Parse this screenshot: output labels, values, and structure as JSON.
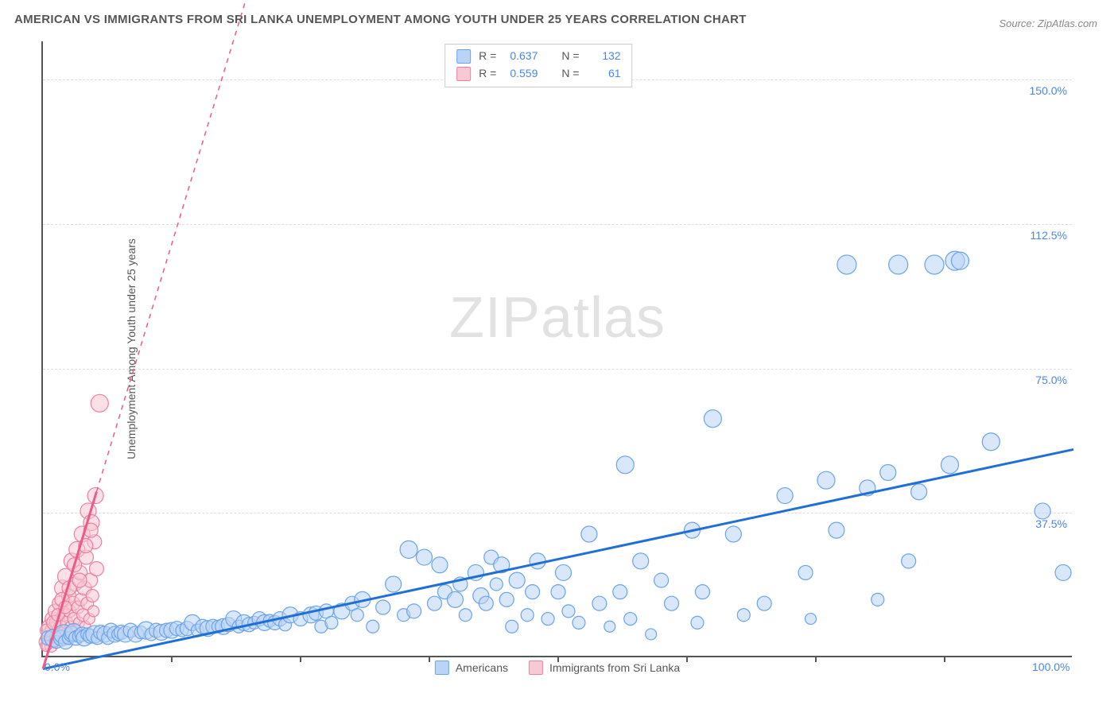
{
  "title": "AMERICAN VS IMMIGRANTS FROM SRI LANKA UNEMPLOYMENT AMONG YOUTH UNDER 25 YEARS CORRELATION CHART",
  "source_label": "Source: ZipAtlas.com",
  "ylabel": "Unemployment Among Youth under 25 years",
  "watermark_a": "ZIP",
  "watermark_b": "atlas",
  "colors": {
    "series1_fill": "#b9d4f5",
    "series1_stroke": "#6aa3e8",
    "series1_line": "#1f6fd6",
    "series2_fill": "#f8c9d4",
    "series2_stroke": "#ec7fa0",
    "series2_line": "#ea5b87",
    "grid": "#dddddd",
    "axis": "#555555",
    "tick_text": "#4a86e8",
    "title_text": "#555555",
    "source_text": "#888888",
    "watermark": "#cccccc"
  },
  "legend_top": {
    "rows": [
      {
        "swatch": "series1",
        "r": "0.637",
        "n": "132"
      },
      {
        "swatch": "series2",
        "r": "0.559",
        "n": "61"
      }
    ],
    "r_label": "R =",
    "n_label": "N ="
  },
  "legend_bottom": {
    "series1_label": "Americans",
    "series2_label": "Immigrants from Sri Lanka"
  },
  "axes": {
    "xlim": [
      0,
      100
    ],
    "ylim": [
      0,
      160
    ],
    "x_ticks_minor": [
      12.5,
      25,
      37.5,
      50,
      62.5,
      75,
      87.5
    ],
    "x_tick_labels": [
      {
        "v": 0,
        "label": "0.0%"
      },
      {
        "v": 100,
        "label": "100.0%"
      }
    ],
    "y_tick_labels": [
      {
        "v": 37.5,
        "label": "37.5%"
      },
      {
        "v": 75.0,
        "label": "75.0%"
      },
      {
        "v": 112.5,
        "label": "112.5%"
      },
      {
        "v": 150.0,
        "label": "150.0%"
      }
    ]
  },
  "trend_lines": {
    "series1": {
      "x1": 0,
      "y1": -3,
      "x2": 100,
      "y2": 54,
      "dashed_extend": false
    },
    "series2": {
      "x1": 0,
      "y1": -3,
      "x2": 5.2,
      "y2": 43,
      "dashed_extend": true,
      "dash_x2": 23,
      "dash_y2": 200
    }
  },
  "series1_points": [
    [
      0.5,
      5,
      9
    ],
    [
      1,
      5,
      11
    ],
    [
      1.3,
      4,
      8
    ],
    [
      1.8,
      5,
      10
    ],
    [
      2,
      6,
      12
    ],
    [
      2.2,
      4,
      9
    ],
    [
      2.5,
      5,
      8
    ],
    [
      2.8,
      6,
      10
    ],
    [
      3,
      6.5,
      11
    ],
    [
      3.2,
      5,
      9
    ],
    [
      3.5,
      5.5,
      8
    ],
    [
      3.8,
      6,
      9
    ],
    [
      4,
      5,
      10
    ],
    [
      4.3,
      6,
      8
    ],
    [
      4.6,
      5.5,
      9
    ],
    [
      5,
      6,
      11
    ],
    [
      5.3,
      5,
      8
    ],
    [
      5.6,
      6.5,
      9
    ],
    [
      6,
      6,
      10
    ],
    [
      6.3,
      5,
      8
    ],
    [
      6.6,
      7,
      9
    ],
    [
      7,
      6,
      10
    ],
    [
      7.3,
      6,
      8
    ],
    [
      7.6,
      6.5,
      9
    ],
    [
      8,
      6,
      10
    ],
    [
      8.5,
      7,
      9
    ],
    [
      9,
      6,
      10
    ],
    [
      9.5,
      6.5,
      8
    ],
    [
      10,
      7,
      11
    ],
    [
      10.5,
      6,
      8
    ],
    [
      11,
      7,
      9
    ],
    [
      11.5,
      6.5,
      10
    ],
    [
      12,
      7,
      9
    ],
    [
      12.5,
      7,
      10
    ],
    [
      13,
      7.5,
      9
    ],
    [
      13.5,
      7,
      8
    ],
    [
      14,
      7.5,
      9
    ],
    [
      14.5,
      9,
      10
    ],
    [
      15,
      7,
      8
    ],
    [
      15.5,
      8,
      9
    ],
    [
      16,
      7.5,
      10
    ],
    [
      16.5,
      8,
      9
    ],
    [
      17,
      8,
      8
    ],
    [
      17.5,
      8,
      10
    ],
    [
      18,
      8.5,
      9
    ],
    [
      18.5,
      10,
      10
    ],
    [
      19,
      8,
      8
    ],
    [
      19.5,
      9,
      10
    ],
    [
      20,
      8.5,
      9
    ],
    [
      20.5,
      9,
      8
    ],
    [
      21,
      10,
      9
    ],
    [
      21.5,
      9,
      10
    ],
    [
      22,
      9.5,
      8
    ],
    [
      22.5,
      9,
      9
    ],
    [
      23,
      10,
      9
    ],
    [
      23.5,
      8.5,
      8
    ],
    [
      24,
      11,
      10
    ],
    [
      25,
      10,
      9
    ],
    [
      26,
      11,
      10
    ],
    [
      26.5,
      11.5,
      9
    ],
    [
      27,
      8,
      8
    ],
    [
      27.5,
      12,
      9
    ],
    [
      28,
      9,
      8
    ],
    [
      29,
      12,
      10
    ],
    [
      30,
      14,
      9
    ],
    [
      30.5,
      11,
      8
    ],
    [
      31,
      15,
      10
    ],
    [
      32,
      8,
      8
    ],
    [
      33,
      13,
      9
    ],
    [
      34,
      19,
      10
    ],
    [
      35,
      11,
      8
    ],
    [
      35.5,
      28,
      11
    ],
    [
      36,
      12,
      9
    ],
    [
      37,
      26,
      10
    ],
    [
      38,
      14,
      9
    ],
    [
      38.5,
      24,
      10
    ],
    [
      39,
      17,
      9
    ],
    [
      40,
      15,
      10
    ],
    [
      40.5,
      19,
      9
    ],
    [
      41,
      11,
      8
    ],
    [
      42,
      22,
      10
    ],
    [
      42.5,
      16,
      10
    ],
    [
      43,
      14,
      9
    ],
    [
      43.5,
      26,
      9
    ],
    [
      44,
      19,
      8
    ],
    [
      44.5,
      24,
      10
    ],
    [
      45,
      15,
      9
    ],
    [
      45.5,
      8,
      8
    ],
    [
      46,
      20,
      10
    ],
    [
      47,
      11,
      8
    ],
    [
      47.5,
      17,
      9
    ],
    [
      48,
      25,
      10
    ],
    [
      49,
      10,
      8
    ],
    [
      50,
      17,
      9
    ],
    [
      50.5,
      22,
      10
    ],
    [
      51,
      12,
      8
    ],
    [
      52,
      9,
      8
    ],
    [
      53,
      32,
      10
    ],
    [
      54,
      14,
      9
    ],
    [
      55,
      8,
      7
    ],
    [
      56,
      17,
      9
    ],
    [
      56.5,
      50,
      11
    ],
    [
      57,
      10,
      8
    ],
    [
      58,
      25,
      10
    ],
    [
      59,
      6,
      7
    ],
    [
      60,
      20,
      9
    ],
    [
      61,
      14,
      9
    ],
    [
      63,
      33,
      10
    ],
    [
      63.5,
      9,
      8
    ],
    [
      64,
      17,
      9
    ],
    [
      65,
      62,
      11
    ],
    [
      67,
      32,
      10
    ],
    [
      68,
      11,
      8
    ],
    [
      70,
      14,
      9
    ],
    [
      72,
      42,
      10
    ],
    [
      74,
      22,
      9
    ],
    [
      74.5,
      10,
      7
    ],
    [
      76,
      46,
      11
    ],
    [
      77,
      33,
      10
    ],
    [
      78,
      102,
      12
    ],
    [
      80,
      44,
      10
    ],
    [
      81,
      15,
      8
    ],
    [
      82,
      48,
      10
    ],
    [
      83,
      102,
      12
    ],
    [
      84,
      25,
      9
    ],
    [
      85,
      43,
      10
    ],
    [
      86.5,
      102,
      12
    ],
    [
      88,
      50,
      11
    ],
    [
      88.5,
      103,
      12
    ],
    [
      89,
      103,
      11
    ],
    [
      92,
      56,
      11
    ],
    [
      97,
      38,
      10
    ],
    [
      99,
      22,
      10
    ]
  ],
  "series2_points": [
    [
      0.4,
      4,
      10
    ],
    [
      0.5,
      6,
      8
    ],
    [
      0.6,
      8,
      9
    ],
    [
      0.7,
      5,
      7
    ],
    [
      0.8,
      3,
      8
    ],
    [
      0.9,
      10,
      9
    ],
    [
      1.0,
      7,
      10
    ],
    [
      1.1,
      4,
      7
    ],
    [
      1.2,
      12,
      9
    ],
    [
      1.3,
      6,
      8
    ],
    [
      1.4,
      9,
      10
    ],
    [
      1.5,
      5,
      7
    ],
    [
      1.6,
      14,
      9
    ],
    [
      1.7,
      8,
      8
    ],
    [
      1.8,
      6,
      9
    ],
    [
      1.9,
      18,
      10
    ],
    [
      2.0,
      11,
      8
    ],
    [
      2.1,
      7,
      7
    ],
    [
      2.2,
      21,
      10
    ],
    [
      2.3,
      9,
      8
    ],
    [
      2.4,
      5,
      7
    ],
    [
      2.5,
      16,
      9
    ],
    [
      2.6,
      12,
      8
    ],
    [
      2.7,
      8,
      7
    ],
    [
      2.8,
      25,
      10
    ],
    [
      2.9,
      14,
      9
    ],
    [
      3.0,
      10,
      8
    ],
    [
      3.1,
      19,
      9
    ],
    [
      3.2,
      7,
      7
    ],
    [
      3.3,
      28,
      10
    ],
    [
      3.4,
      13,
      8
    ],
    [
      3.5,
      9,
      7
    ],
    [
      3.6,
      22,
      9
    ],
    [
      3.7,
      15,
      8
    ],
    [
      3.8,
      32,
      10
    ],
    [
      3.9,
      11,
      8
    ],
    [
      4.0,
      18,
      9
    ],
    [
      4.1,
      8,
      7
    ],
    [
      4.2,
      26,
      9
    ],
    [
      4.3,
      14,
      8
    ],
    [
      4.4,
      38,
      10
    ],
    [
      4.5,
      10,
      7
    ],
    [
      4.6,
      20,
      9
    ],
    [
      4.7,
      35,
      10
    ],
    [
      4.8,
      16,
      8
    ],
    [
      4.9,
      12,
      7
    ],
    [
      5.0,
      30,
      9
    ],
    [
      5.1,
      42,
      10
    ],
    [
      5.2,
      23,
      9
    ],
    [
      0.3,
      3,
      7
    ],
    [
      0.35,
      7,
      8
    ],
    [
      1.05,
      9,
      9
    ],
    [
      1.45,
      11,
      8
    ],
    [
      1.85,
      15,
      9
    ],
    [
      2.15,
      13,
      8
    ],
    [
      2.55,
      18,
      9
    ],
    [
      3.05,
      24,
      9
    ],
    [
      3.55,
      20,
      9
    ],
    [
      4.15,
      29,
      9
    ],
    [
      4.65,
      33,
      9
    ],
    [
      5.5,
      66,
      11
    ]
  ]
}
